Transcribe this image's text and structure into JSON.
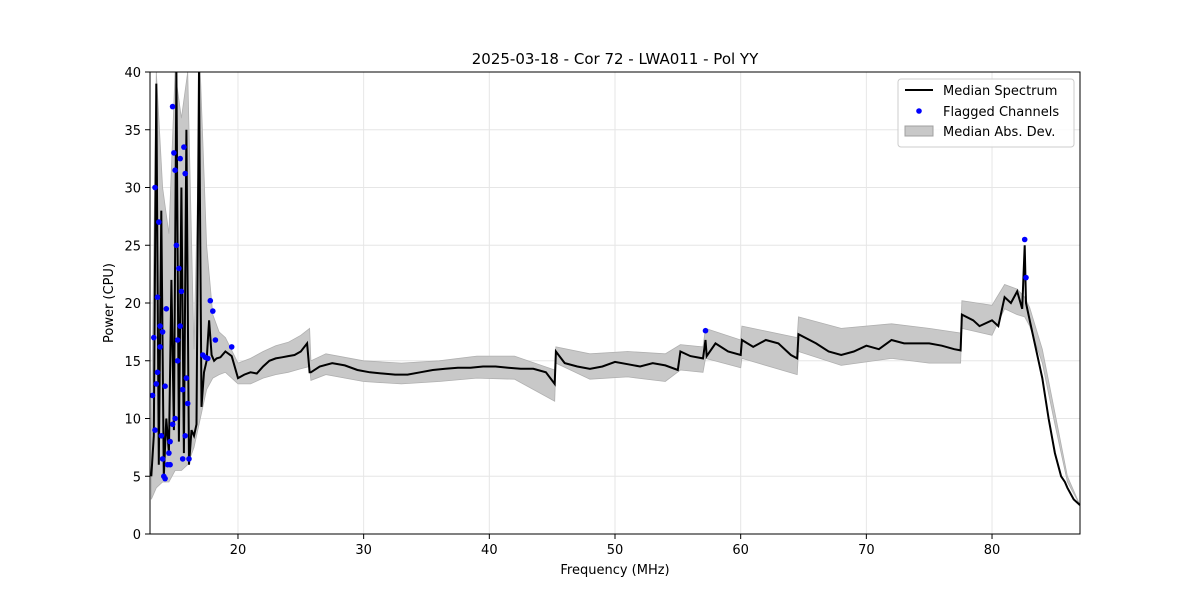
{
  "chart_data": {
    "type": "line",
    "title": "2025-03-18 - Cor 72 - LWA011 - Pol YY",
    "xlabel": "Frequency (MHz)",
    "ylabel": "Power (CPU)",
    "xlim": [
      13.0,
      87.0
    ],
    "ylim": [
      0,
      40
    ],
    "xticks": [
      20,
      30,
      40,
      50,
      60,
      70,
      80
    ],
    "yticks": [
      0,
      5,
      10,
      15,
      20,
      25,
      30,
      35,
      40
    ],
    "grid": true,
    "legend_position": "top-right",
    "colors": {
      "median": "#000000",
      "flagged": "#0000ff",
      "mad": "#b0b0b0"
    },
    "legend": [
      "Median Spectrum",
      "Flagged Channels",
      "Median Abs. Dev."
    ],
    "series": [
      {
        "name": "Median Spectrum",
        "kind": "line",
        "x": [
          13.1,
          13.3,
          13.5,
          13.7,
          13.9,
          14.1,
          14.3,
          14.5,
          14.7,
          14.9,
          15.1,
          15.3,
          15.5,
          15.7,
          15.9,
          16.1,
          16.3,
          16.5,
          16.7,
          16.9,
          17.1,
          17.3,
          17.5,
          17.7,
          17.9,
          18.1,
          18.3,
          18.6,
          19.0,
          19.5,
          20.0,
          20.5,
          21.0,
          21.5,
          22.0,
          22.5,
          23.0,
          23.5,
          24.0,
          24.5,
          25.0,
          25.5,
          25.7,
          25.8,
          26.5,
          27.5,
          28.5,
          29.5,
          30.5,
          31.5,
          32.5,
          33.5,
          34.5,
          35.5,
          36.5,
          37.5,
          38.5,
          39.5,
          40.5,
          41.5,
          42.5,
          43.5,
          44.5,
          45.2,
          45.3,
          46.0,
          47.0,
          48.0,
          49.0,
          50.0,
          51.0,
          52.0,
          53.0,
          54.0,
          55.0,
          55.2,
          56.0,
          57.0,
          57.2,
          57.3,
          58.0,
          59.0,
          60.0,
          60.1,
          61.0,
          62.0,
          63.0,
          64.0,
          64.5,
          64.6,
          66.0,
          67.0,
          68.0,
          69.0,
          70.0,
          71.0,
          72.0,
          73.0,
          74.0,
          75.0,
          76.0,
          77.0,
          77.5,
          77.6,
          78.5,
          79.0,
          80.0,
          80.5,
          81.0,
          81.5,
          82.0,
          82.4,
          82.6,
          82.7,
          83.0,
          83.5,
          84.0,
          84.5,
          85.0,
          85.5,
          85.8,
          86.0,
          86.5,
          87.0
        ],
        "y": [
          5.0,
          8.5,
          39.0,
          6.0,
          28.0,
          5.0,
          10.0,
          7.0,
          22.0,
          9.0,
          40.0,
          8.0,
          30.0,
          7.0,
          35.0,
          6.0,
          9.0,
          8.5,
          9.5,
          40.0,
          11.0,
          14.0,
          15.0,
          18.5,
          15.5,
          15.0,
          15.2,
          15.3,
          15.8,
          15.4,
          13.5,
          13.8,
          14.0,
          13.9,
          14.5,
          15.0,
          15.2,
          15.3,
          15.4,
          15.5,
          15.8,
          16.5,
          14.0,
          14.0,
          14.5,
          14.8,
          14.6,
          14.2,
          14.0,
          13.9,
          13.8,
          13.8,
          14.0,
          14.2,
          14.3,
          14.4,
          14.4,
          14.5,
          14.5,
          14.4,
          14.3,
          14.3,
          14.0,
          13.0,
          15.8,
          14.8,
          14.5,
          14.3,
          14.5,
          14.9,
          14.7,
          14.5,
          14.8,
          14.6,
          14.2,
          15.8,
          15.4,
          15.2,
          16.8,
          15.4,
          16.5,
          15.8,
          15.5,
          16.8,
          16.2,
          16.8,
          16.5,
          15.5,
          15.2,
          17.3,
          16.5,
          15.8,
          15.5,
          15.8,
          16.3,
          16.0,
          16.8,
          16.5,
          16.5,
          16.5,
          16.3,
          16.0,
          15.9,
          19.0,
          18.5,
          18.0,
          18.5,
          18.0,
          20.5,
          20.0,
          21.0,
          19.5,
          25.0,
          20.0,
          18.5,
          16.0,
          13.5,
          10.0,
          7.0,
          5.0,
          4.5,
          4.0,
          3.0,
          2.5
        ]
      },
      {
        "name": "Median Abs. Dev.",
        "kind": "band",
        "x": [
          13.1,
          13.5,
          14.0,
          14.5,
          15.0,
          15.5,
          16.0,
          16.5,
          17.0,
          17.5,
          18.0,
          18.5,
          19.0,
          20.0,
          21.0,
          22.0,
          23.0,
          24.0,
          25.0,
          25.7,
          25.8,
          27.0,
          30.0,
          33.0,
          36.0,
          39.0,
          42.0,
          45.2,
          45.3,
          48.0,
          51.0,
          54.0,
          55.2,
          57.0,
          57.2,
          60.0,
          60.1,
          64.5,
          64.6,
          68.0,
          72.0,
          75.0,
          77.5,
          77.6,
          80.0,
          81.0,
          82.0,
          82.6,
          83.0,
          84.0,
          85.0,
          86.0,
          87.0
        ],
        "lower": [
          3.0,
          4.0,
          4.5,
          4.5,
          5.5,
          5.5,
          6.0,
          7.5,
          10.0,
          12.5,
          13.5,
          13.8,
          14.0,
          13.0,
          13.0,
          13.5,
          13.8,
          14.0,
          14.3,
          14.5,
          13.3,
          13.8,
          13.2,
          13.0,
          13.2,
          13.5,
          13.4,
          11.5,
          14.8,
          13.4,
          13.6,
          13.2,
          14.2,
          14.0,
          15.2,
          14.4,
          15.2,
          13.8,
          15.8,
          14.6,
          15.2,
          14.8,
          14.8,
          17.8,
          17.2,
          19.5,
          19.0,
          18.8,
          18.0,
          14.8,
          9.5,
          4.5,
          2.5
        ],
        "upper": [
          9.0,
          40.0,
          30.0,
          26.0,
          40.0,
          36.0,
          40.0,
          16.0,
          40.0,
          25.0,
          19.0,
          17.5,
          17.0,
          14.8,
          15.2,
          15.8,
          16.3,
          16.6,
          17.2,
          17.8,
          15.0,
          15.6,
          15.0,
          14.8,
          15.0,
          15.4,
          15.4,
          14.2,
          16.2,
          15.6,
          15.8,
          15.6,
          16.4,
          16.2,
          17.8,
          16.8,
          18.0,
          17.0,
          18.8,
          17.8,
          18.2,
          17.8,
          17.4,
          20.2,
          19.8,
          21.6,
          21.2,
          20.5,
          19.6,
          16.0,
          10.5,
          5.0,
          2.5
        ]
      },
      {
        "name": "Flagged Channels",
        "kind": "scatter",
        "x": [
          13.2,
          13.3,
          13.4,
          13.5,
          13.6,
          13.7,
          13.8,
          13.9,
          14.0,
          14.1,
          14.2,
          14.3,
          14.5,
          14.6,
          14.8,
          14.9,
          15.0,
          15.1,
          15.2,
          15.3,
          15.4,
          15.5,
          15.6,
          15.7,
          15.8,
          15.9,
          16.0,
          16.1,
          17.2,
          17.4,
          17.6,
          17.8,
          18.0,
          18.2,
          19.5,
          13.4,
          13.6,
          13.8,
          14.2,
          14.4,
          14.6,
          15.0,
          15.2,
          15.4,
          15.6,
          14.0,
          14.8,
          15.8,
          57.2,
          82.6,
          82.7
        ],
        "y": [
          12.0,
          17.0,
          30.0,
          13.0,
          20.5,
          27.0,
          18.0,
          8.5,
          6.5,
          5.0,
          12.8,
          19.5,
          7.0,
          6.0,
          37.0,
          33.0,
          31.5,
          25.0,
          16.8,
          23.0,
          32.5,
          21.0,
          12.5,
          33.5,
          31.2,
          13.5,
          11.3,
          6.5,
          15.5,
          15.3,
          15.2,
          20.2,
          19.3,
          16.8,
          16.2,
          9.0,
          14.0,
          16.2,
          4.8,
          6.0,
          8.0,
          10.0,
          15.0,
          18.0,
          6.5,
          17.5,
          9.5,
          8.5,
          17.6,
          25.5,
          22.2
        ]
      }
    ]
  }
}
